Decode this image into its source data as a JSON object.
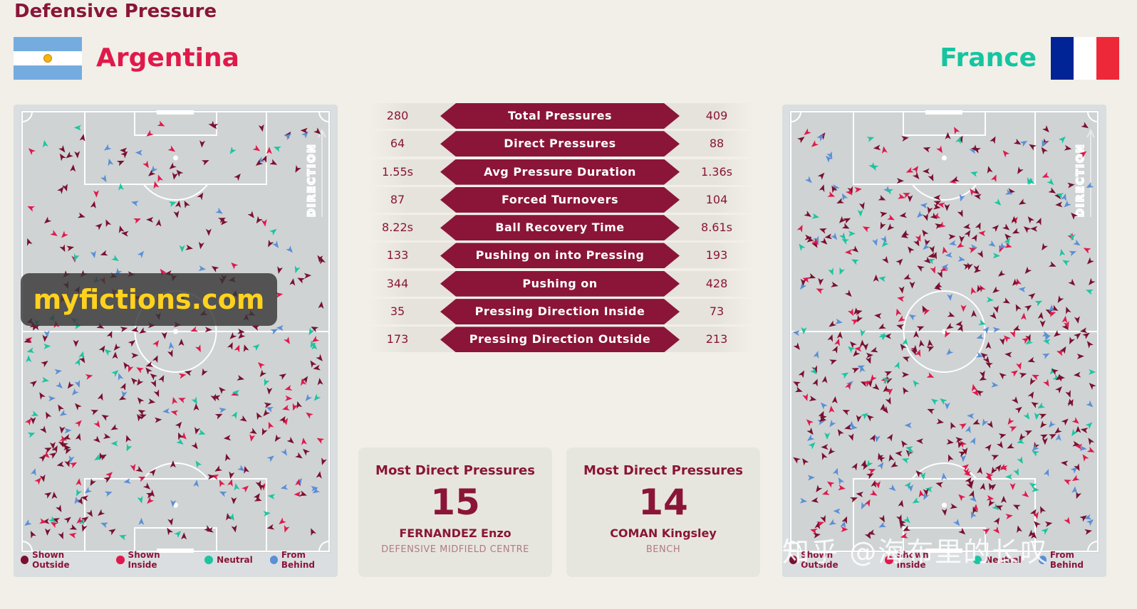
{
  "page": {
    "title": "Defensive Pressure"
  },
  "teams": {
    "left": {
      "name": "Argentina",
      "flag": "argentina-flag",
      "color": "#e0194b"
    },
    "right": {
      "name": "France",
      "flag": "france-flag",
      "color": "#16c4a1"
    }
  },
  "pitch": {
    "direction_label": "DIRECTION"
  },
  "legend": [
    {
      "label": "Shown Outside",
      "color": "#7a1030"
    },
    {
      "label": "Shown Inside",
      "color": "#e0194b"
    },
    {
      "label": "Neutral",
      "color": "#1cc4a0"
    },
    {
      "label": "From Behind",
      "color": "#5b8fd6"
    }
  ],
  "stats": [
    {
      "label": "Total Pressures",
      "left": "280",
      "right": "409"
    },
    {
      "label": "Direct Pressures",
      "left": "64",
      "right": "88"
    },
    {
      "label": "Avg Pressure Duration",
      "left": "1.55s",
      "right": "1.36s"
    },
    {
      "label": "Forced Turnovers",
      "left": "87",
      "right": "104"
    },
    {
      "label": "Ball Recovery Time",
      "left": "8.22s",
      "right": "8.61s"
    },
    {
      "label": "Pushing on into Pressing",
      "left": "133",
      "right": "193"
    },
    {
      "label": "Pushing on",
      "left": "344",
      "right": "428"
    },
    {
      "label": "Pressing Direction Inside",
      "left": "35",
      "right": "73"
    },
    {
      "label": "Pressing Direction Outside",
      "left": "173",
      "right": "213"
    }
  ],
  "cards": {
    "left": {
      "title": "Most Direct Pressures",
      "value": "15",
      "player": "FERNANDEZ Enzo",
      "position": "DEFENSIVE MIDFIELD CENTRE"
    },
    "right": {
      "title": "Most Direct Pressures",
      "value": "14",
      "player": "COMAN Kingsley",
      "position": "BENCH"
    }
  },
  "watermarks": {
    "site": "myfictions.com",
    "zhihu": "知乎 @海布里的长叹"
  }
}
